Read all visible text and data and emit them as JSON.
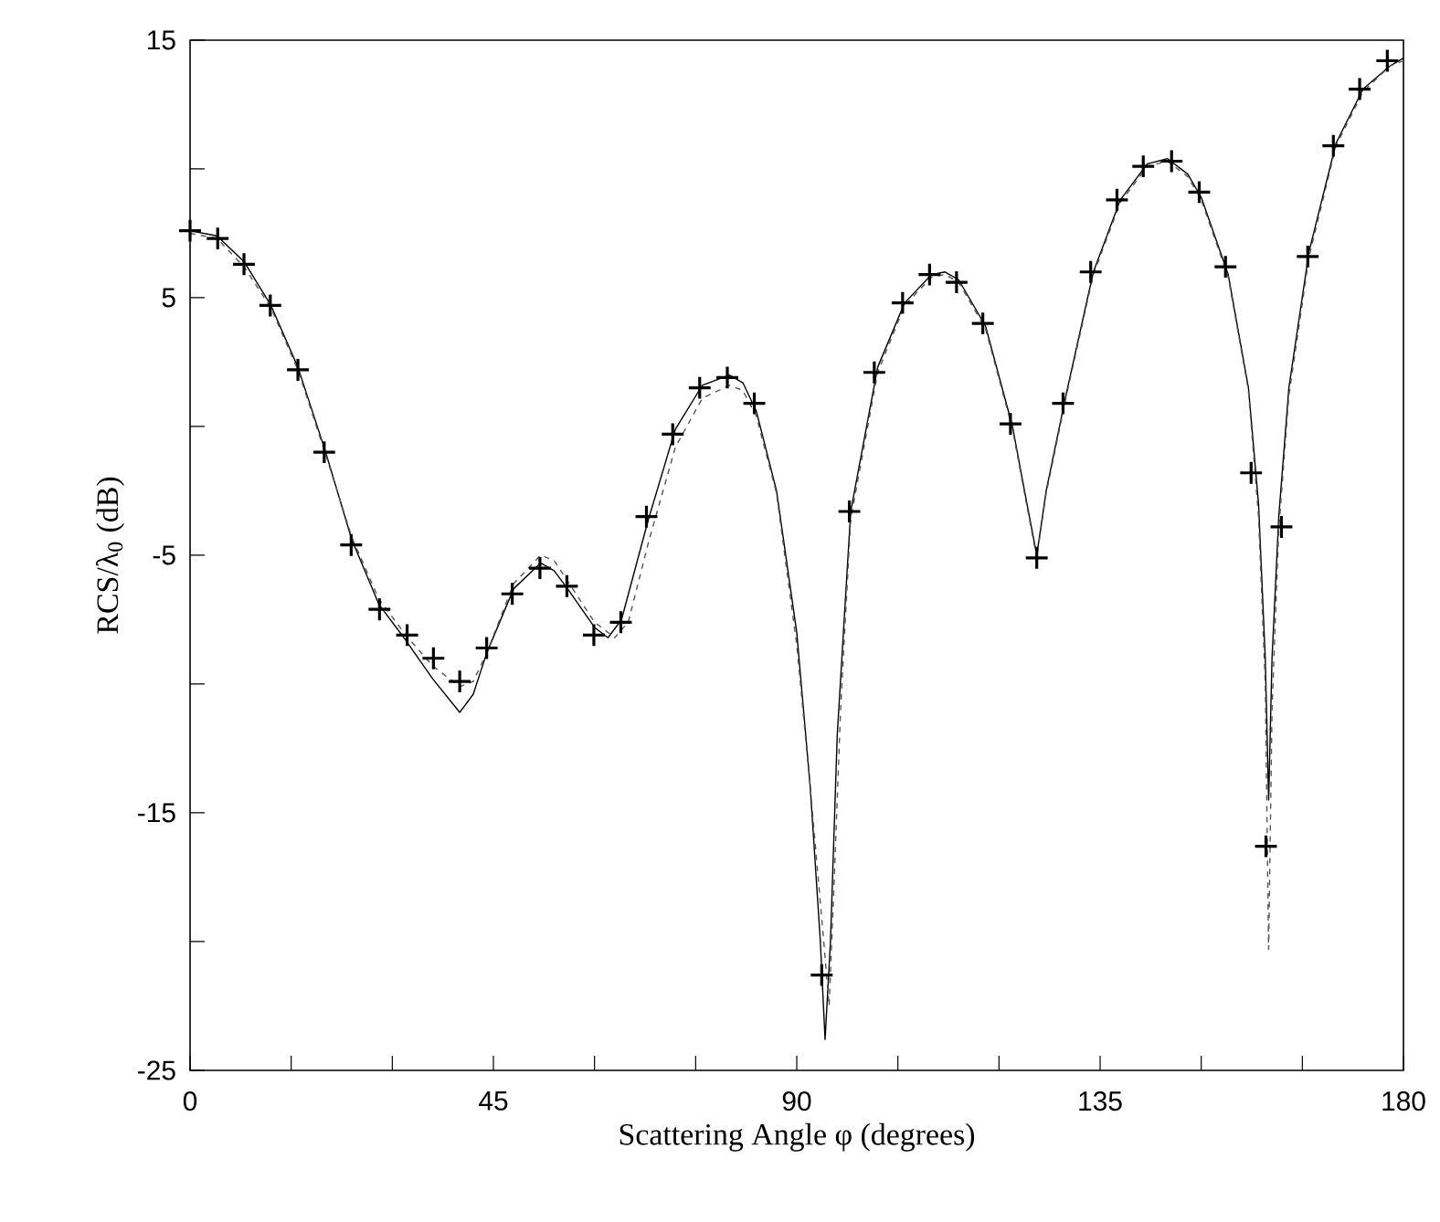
{
  "chart_data": {
    "type": "line",
    "xlabel": "Scattering Angle φ (degrees)",
    "ylabel": "RCS/λ$_{0}$ (dB)",
    "xlim": [
      0,
      180
    ],
    "ylim": [
      -25,
      15
    ],
    "xticks": [
      0,
      {
        "value": 15,
        "label": null
      },
      {
        "value": 30,
        "label": null
      },
      45,
      {
        "value": 60,
        "label": null
      },
      {
        "value": 75,
        "label": null
      },
      90,
      {
        "value": 105,
        "label": null
      },
      {
        "value": 120,
        "label": null
      },
      135,
      {
        "value": 150,
        "label": null
      },
      {
        "value": 165,
        "label": null
      },
      180
    ],
    "yticks": [
      -25,
      {
        "value": -20,
        "label": null
      },
      -15,
      {
        "value": -10,
        "label": null
      },
      -5,
      {
        "value": 0,
        "label": null
      },
      5,
      {
        "value": 10,
        "label": null
      },
      15
    ],
    "grid": false,
    "series": [
      {
        "color": "#000000",
        "line_style": "solid",
        "x": [
          0,
          4,
          8,
          12,
          16,
          20,
          24,
          28,
          32,
          36,
          40,
          42,
          44,
          48,
          52,
          54,
          56,
          60,
          62,
          64,
          68,
          72,
          76,
          80,
          82,
          84,
          87,
          90,
          92,
          93.5,
          94.2,
          95,
          96,
          98,
          102,
          106,
          110,
          112,
          114,
          118,
          122,
          124,
          125.6,
          127,
          130,
          134,
          138,
          142,
          145,
          148,
          150,
          154,
          157,
          158.5,
          159.5,
          160,
          160.5,
          161.5,
          163,
          166,
          170,
          174,
          178,
          180
        ],
        "values": [
          7.6,
          7.4,
          6.4,
          4.7,
          2.3,
          -0.9,
          -4.4,
          -6.9,
          -8.3,
          -9.8,
          -11.1,
          -10.4,
          -8.8,
          -6.3,
          -5.3,
          -5.6,
          -6.3,
          -7.8,
          -8.2,
          -7.5,
          -3.6,
          -0.1,
          1.6,
          2.0,
          1.7,
          0.6,
          -2.5,
          -8,
          -14,
          -20,
          -23.8,
          -20,
          -12,
          -3.3,
          2.3,
          4.8,
          5.9,
          6.0,
          5.7,
          3.9,
          0.0,
          -2.8,
          -5.0,
          -2.5,
          1.3,
          6.0,
          8.8,
          10.2,
          10.4,
          9.8,
          8.9,
          5.9,
          1.5,
          -3,
          -9,
          -14.5,
          -9,
          -3.5,
          1.5,
          6.8,
          11.0,
          13.1,
          14.0,
          14.3
        ]
      },
      {
        "color": "#555555",
        "line_style": "dashed",
        "x": [
          0,
          4,
          8,
          12,
          16,
          20,
          24,
          28,
          32,
          36,
          40,
          42,
          44,
          48,
          52,
          54,
          56,
          60,
          63,
          65,
          68,
          72,
          76,
          80,
          82,
          84,
          87,
          90,
          92,
          94,
          94.8,
          95.5,
          96.5,
          98,
          102,
          106,
          110,
          112,
          114,
          118,
          122,
          124,
          125.6,
          127,
          130,
          134,
          138,
          142,
          145,
          148,
          150,
          154,
          157,
          158.5,
          159.5,
          160,
          160.5,
          161.5,
          163,
          166,
          170,
          174,
          178,
          180
        ],
        "values": [
          7.5,
          7.3,
          6.2,
          4.6,
          2.2,
          -1.0,
          -4.3,
          -6.7,
          -8.1,
          -9.3,
          -10.1,
          -9.9,
          -8.8,
          -6.1,
          -5.0,
          -5.2,
          -6.0,
          -7.6,
          -8.2,
          -7.6,
          -4.5,
          -0.8,
          1.1,
          1.6,
          1.4,
          0.4,
          -2.6,
          -8.5,
          -14,
          -20,
          -22.5,
          -18,
          -11,
          -3.6,
          2.1,
          4.7,
          5.8,
          5.9,
          5.6,
          3.8,
          -0.1,
          -2.9,
          -5.1,
          -2.6,
          1.2,
          5.9,
          8.7,
          10.1,
          10.3,
          9.7,
          8.8,
          5.8,
          1.4,
          -3.5,
          -10,
          -20.3,
          -11,
          -4,
          1.2,
          6.6,
          10.9,
          13.0,
          14.0,
          14.2
        ]
      },
      {
        "type": "scatter",
        "color": "#000000",
        "marker": "cross",
        "x": [
          0,
          4.1,
          8,
          11.9,
          16,
          19.9,
          23.9,
          28.1,
          32.2,
          36.1,
          40,
          44,
          47.8,
          51.9,
          55.9,
          59.9,
          63.9,
          67.7,
          71.6,
          75.6,
          79.7,
          83.7,
          93.7,
          97.8,
          101.5,
          105.7,
          109.7,
          113.7,
          117.6,
          121.7,
          125.6,
          129.5,
          133.6,
          137.5,
          141.4,
          145.6,
          149.7,
          153.6,
          157.4,
          159.6,
          161.9,
          165.8,
          169.6,
          173.5,
          177.6
        ],
        "values": [
          7.6,
          7.3,
          6.3,
          4.7,
          2.2,
          -1.0,
          -4.6,
          -7.1,
          -8.1,
          -9.0,
          -9.9,
          -8.6,
          -6.5,
          -5.5,
          -6.2,
          -8.1,
          -7.6,
          -3.5,
          -0.3,
          1.5,
          1.9,
          0.9,
          -21.3,
          -3.3,
          2.1,
          4.8,
          5.9,
          5.6,
          4.0,
          0.1,
          -5.1,
          0.9,
          6.0,
          8.8,
          10.1,
          10.3,
          9.1,
          6.2,
          -1.8,
          -16.3,
          -3.9,
          6.6,
          10.9,
          13.1,
          14.2
        ]
      }
    ]
  }
}
